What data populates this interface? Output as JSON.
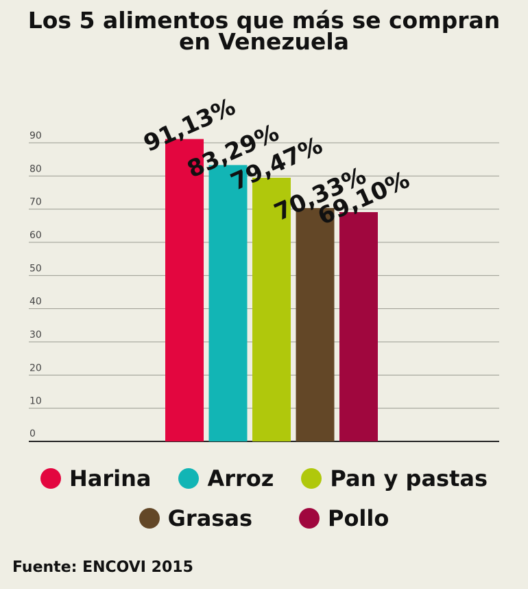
{
  "title_lines": [
    "Los 5 alimentos que más se compran",
    "en Venezuela"
  ],
  "source": "Fuente: ENCOVI 2015",
  "chart_data": {
    "type": "bar",
    "title": "Los 5 alimentos que más se compran en Venezuela",
    "categories": [
      "Harina",
      "Arroz",
      "Pan y pastas",
      "Grasas",
      "Pollo"
    ],
    "values": [
      91.13,
      83.29,
      79.47,
      70.33,
      69.1
    ],
    "data_labels": [
      "91,13%",
      "83,29%",
      "79,47%",
      "70,33%",
      "69,10%"
    ],
    "colors": [
      "#e3063f",
      "#12b5b5",
      "#b0c80c",
      "#634727",
      "#a0073e"
    ],
    "yticks": [
      "0",
      "10",
      "20",
      "30",
      "40",
      "50",
      "60",
      "70",
      "80",
      "90"
    ],
    "ylim": [
      0,
      90
    ],
    "grid": true,
    "legend": "bottom"
  }
}
